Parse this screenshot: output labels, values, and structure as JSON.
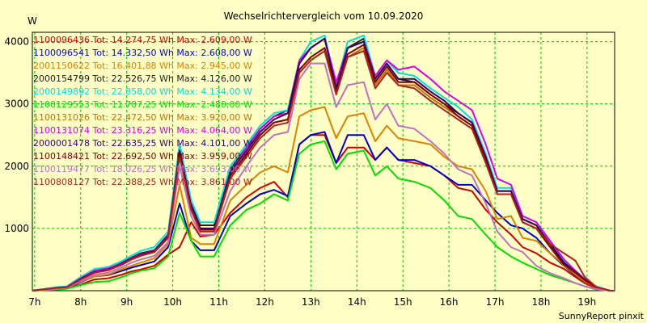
{
  "chart_data": {
    "type": "line",
    "title": "Wechselrichtervergleich vom 10.09.2020",
    "ylabel": "W",
    "xlabel": "",
    "footer": "SunnyReport pinxit",
    "ylim": [
      0,
      4150
    ],
    "xlim": [
      6.95,
      19.6
    ],
    "yticks": [
      1000,
      2000,
      3000,
      4000
    ],
    "xticks": [
      {
        "v": 7,
        "label": "7h"
      },
      {
        "v": 8,
        "label": "8h"
      },
      {
        "v": 9,
        "label": "9h"
      },
      {
        "v": 10,
        "label": "10h"
      },
      {
        "v": 11,
        "label": "11h"
      },
      {
        "v": 12,
        "label": "12h"
      },
      {
        "v": 13,
        "label": "13h"
      },
      {
        "v": 14,
        "label": "14h"
      },
      {
        "v": 15,
        "label": "15h"
      },
      {
        "v": 16,
        "label": "16h"
      },
      {
        "v": 17,
        "label": "17h"
      },
      {
        "v": 18,
        "label": "18h"
      },
      {
        "v": 19,
        "label": "19h"
      }
    ],
    "grid": true,
    "x": [
      6.95,
      7.5,
      7.7,
      8.0,
      8.3,
      8.6,
      8.9,
      9.1,
      9.3,
      9.6,
      9.9,
      10.15,
      10.4,
      10.6,
      10.9,
      11.25,
      11.6,
      11.9,
      12.2,
      12.5,
      12.75,
      13.0,
      13.3,
      13.55,
      13.8,
      14.15,
      14.4,
      14.65,
      14.9,
      15.25,
      15.6,
      15.9,
      16.2,
      16.5,
      16.8,
      17.05,
      17.35,
      17.6,
      17.9,
      18.2,
      18.5,
      18.75,
      18.95,
      19.2,
      19.5,
      19.6
    ],
    "series": [
      {
        "name": "1100096436",
        "legend": "1100096436 Tot: 14.274,75 Wh Max: 2.609,00 W",
        "color": "#d00000",
        "values": [
          0,
          30,
          40,
          100,
          180,
          200,
          260,
          310,
          340,
          400,
          580,
          700,
          1100,
          870,
          900,
          1250,
          1500,
          1650,
          1750,
          1500,
          2350,
          2500,
          2500,
          2050,
          2300,
          2300,
          2100,
          2300,
          2100,
          2050,
          2000,
          1850,
          1650,
          1600,
          1300,
          1100,
          900,
          700,
          600,
          450,
          350,
          220,
          120,
          40,
          0,
          0
        ]
      },
      {
        "name": "1100096541",
        "legend": "1100096541 Tot: 14.332,50 Wh Max: 2.608,00 W",
        "color": "#0000d0",
        "values": [
          0,
          30,
          40,
          140,
          230,
          250,
          320,
          370,
          410,
          470,
          700,
          1400,
          800,
          650,
          650,
          1200,
          1400,
          1550,
          1620,
          1520,
          2350,
          2500,
          2550,
          2050,
          2500,
          2500,
          2100,
          2300,
          2100,
          2100,
          2000,
          1850,
          1700,
          1700,
          1450,
          1250,
          1050,
          1000,
          850,
          600,
          400,
          250,
          150,
          50,
          0,
          0
        ]
      },
      {
        "name": "2001150622",
        "legend": "2001150622 Tot: 16.401,88 Wh Max: 2.945,00 W",
        "color": "#e08000",
        "values": [
          0,
          30,
          40,
          150,
          230,
          260,
          350,
          400,
          450,
          520,
          750,
          1700,
          850,
          750,
          750,
          1450,
          1700,
          1900,
          2000,
          1900,
          2800,
          2900,
          2950,
          2450,
          2800,
          2850,
          2400,
          2650,
          2450,
          2400,
          2350,
          2150,
          2000,
          1950,
          1600,
          1150,
          1200,
          850,
          800,
          600,
          420,
          260,
          150,
          50,
          0,
          0
        ]
      },
      {
        "name": "2000154799",
        "legend": "2000154799 Tot: 22.526,75 Wh Max: 4.126,00 W",
        "color": "#202020",
        "values": [
          0,
          50,
          60,
          200,
          320,
          350,
          450,
          530,
          600,
          650,
          900,
          2350,
          1400,
          1050,
          1050,
          1950,
          2300,
          2600,
          2800,
          2900,
          3650,
          3900,
          4050,
          3300,
          3900,
          4050,
          3400,
          3650,
          3400,
          3350,
          3150,
          3000,
          2850,
          2700,
          2150,
          1600,
          1600,
          1150,
          1050,
          750,
          450,
          300,
          180,
          60,
          0,
          0
        ]
      },
      {
        "name": "2000149892",
        "legend": "2000149892 Tot: 22.858,00 Wh Max: 4.134,00 W",
        "color": "#00e0e0",
        "values": [
          0,
          60,
          70,
          220,
          350,
          380,
          480,
          560,
          640,
          700,
          950,
          2350,
          1450,
          1100,
          1100,
          2000,
          2350,
          2650,
          2850,
          2900,
          3700,
          4000,
          4100,
          3300,
          4000,
          4100,
          3450,
          3700,
          3500,
          3450,
          3250,
          3100,
          2950,
          2750,
          2200,
          1650,
          1650,
          1200,
          1100,
          800,
          480,
          320,
          190,
          70,
          0,
          0
        ]
      },
      {
        "name": "1100129553",
        "legend": "1100129553 Tot: 11.787,25 Wh Max: 2.480,00 W",
        "color": "#00e000",
        "values": [
          0,
          20,
          30,
          90,
          140,
          150,
          220,
          280,
          320,
          360,
          550,
          1250,
          800,
          550,
          550,
          1050,
          1300,
          1400,
          1550,
          1450,
          2200,
          2350,
          2400,
          1950,
          2200,
          2250,
          1850,
          2000,
          1800,
          1750,
          1650,
          1450,
          1200,
          1150,
          900,
          700,
          550,
          450,
          350,
          250,
          180,
          120,
          70,
          20,
          0,
          0
        ]
      },
      {
        "name": "1100131026",
        "legend": "1100131026 Tot: 22.472,50 Wh Max: 3.920,00 W",
        "color": "#c07000",
        "values": [
          0,
          50,
          60,
          190,
          300,
          340,
          420,
          500,
          560,
          620,
          850,
          2200,
          1300,
          950,
          950,
          1800,
          2200,
          2500,
          2700,
          2750,
          3500,
          3700,
          3850,
          3200,
          3750,
          3900,
          3300,
          3550,
          3300,
          3300,
          3100,
          2950,
          2800,
          2650,
          2100,
          1550,
          1550,
          1100,
          1000,
          700,
          400,
          280,
          160,
          50,
          0,
          0
        ]
      },
      {
        "name": "1100131074",
        "legend": "1100131074 Tot: 23.316,25 Wh Max: 4.064,00 W",
        "color": "#e000e0",
        "values": [
          0,
          50,
          60,
          200,
          320,
          360,
          440,
          520,
          580,
          640,
          880,
          2250,
          1350,
          1000,
          1000,
          1900,
          2300,
          2600,
          2800,
          2850,
          3700,
          3900,
          4050,
          3350,
          3900,
          4000,
          3450,
          3700,
          3550,
          3600,
          3400,
          3200,
          3050,
          2900,
          2350,
          1800,
          1700,
          1200,
          1100,
          800,
          500,
          320,
          180,
          60,
          0,
          0
        ]
      },
      {
        "name": "2000001478",
        "legend": "2000001478 Tot: 22.635,25 Wh Max: 4.101,00 W",
        "color": "#300070",
        "values": [
          0,
          45,
          55,
          190,
          300,
          340,
          430,
          510,
          570,
          630,
          870,
          2250,
          1350,
          1000,
          1000,
          1900,
          2250,
          2550,
          2750,
          2850,
          3650,
          3900,
          4050,
          3250,
          3900,
          4000,
          3400,
          3650,
          3400,
          3400,
          3200,
          3050,
          2850,
          2700,
          2150,
          1600,
          1600,
          1150,
          1050,
          750,
          450,
          300,
          180,
          60,
          0,
          0
        ]
      },
      {
        "name": "1100148421",
        "legend": "1100148421 Tot: 22.692,50 Wh Max: 3.959,00 W",
        "color": "#800000",
        "values": [
          0,
          45,
          55,
          180,
          290,
          330,
          420,
          500,
          560,
          620,
          850,
          2200,
          1300,
          980,
          980,
          1850,
          2200,
          2500,
          2700,
          2750,
          3550,
          3750,
          3900,
          3200,
          3800,
          3950,
          3350,
          3600,
          3350,
          3350,
          3150,
          3000,
          2800,
          2650,
          2100,
          1550,
          1550,
          1100,
          1000,
          700,
          420,
          290,
          170,
          55,
          0,
          0
        ]
      },
      {
        "name": "1100119477",
        "legend": "1100119477 Tot: 18.026,25 Wh Max: 3.693,00 W",
        "color": "#c070c0",
        "values": [
          0,
          35,
          45,
          160,
          260,
          290,
          380,
          450,
          500,
          560,
          780,
          2000,
          1200,
          900,
          900,
          1600,
          2000,
          2300,
          2500,
          2550,
          3400,
          3650,
          3650,
          2950,
          3300,
          3350,
          2750,
          3000,
          2650,
          2600,
          2400,
          2200,
          1950,
          1850,
          1400,
          950,
          700,
          620,
          400,
          280,
          200,
          120,
          70,
          25,
          0,
          0
        ]
      },
      {
        "name": "1100808127",
        "legend": "1100808127 Tot: 22.388,25 Wh Max: 3.861,00 W",
        "color": "#b02020",
        "values": [
          0,
          45,
          55,
          180,
          290,
          330,
          420,
          500,
          560,
          620,
          850,
          2150,
          1300,
          950,
          950,
          1800,
          2150,
          2450,
          2650,
          2700,
          3500,
          3700,
          3850,
          3150,
          3750,
          3850,
          3250,
          3500,
          3300,
          3250,
          3050,
          2900,
          2750,
          2600,
          2050,
          1550,
          1550,
          1100,
          1000,
          750,
          600,
          480,
          220,
          60,
          0,
          0
        ]
      }
    ]
  }
}
